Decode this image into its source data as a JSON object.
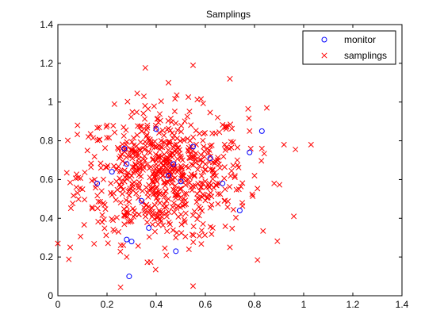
{
  "chart_data": {
    "type": "scatter",
    "title": "Samplings",
    "xlabel": "",
    "ylabel": "",
    "xlim": [
      0,
      1.4
    ],
    "ylim": [
      0,
      1.4
    ],
    "xticks": [
      "0",
      "0.2",
      "0.4",
      "0.6",
      "0.8",
      "1",
      "1.2",
      "1.4"
    ],
    "yticks": [
      "0",
      "0.2",
      "0.4",
      "0.6",
      "0.8",
      "1",
      "1.2",
      "1.4"
    ],
    "grid": false,
    "legend_position": "top-right",
    "series": [
      {
        "name": "monitor",
        "marker": "circle",
        "color": "#0000ff",
        "x": [
          0.16,
          0.22,
          0.27,
          0.28,
          0.29,
          0.3,
          0.34,
          0.37,
          0.4,
          0.48,
          0.5,
          0.55,
          0.62,
          0.67,
          0.74,
          0.78,
          0.83,
          0.28,
          0.47,
          0.45
        ],
        "y": [
          0.58,
          0.64,
          0.76,
          0.29,
          0.1,
          0.28,
          0.49,
          0.35,
          0.86,
          0.23,
          0.59,
          0.77,
          0.71,
          0.58,
          0.44,
          0.74,
          0.85,
          0.68,
          0.68,
          0.62
        ]
      },
      {
        "name": "samplings",
        "marker": "x",
        "color": "#ff0000",
        "x": [
          0.0,
          0.05,
          0.08,
          0.1,
          0.12,
          0.14,
          0.15,
          0.18,
          0.2,
          0.22,
          0.25,
          0.28,
          0.3,
          0.33,
          0.35,
          0.38,
          0.4,
          0.42,
          0.45,
          0.48,
          0.5,
          0.53,
          0.55,
          0.58,
          0.6,
          0.63,
          0.65,
          0.68,
          0.7,
          0.73,
          0.75,
          0.78,
          0.8,
          0.83,
          0.85,
          0.88,
          0.92,
          0.96,
          1.03,
          0.55,
          0.7,
          0.45
        ],
        "y": [
          0.27,
          0.25,
          0.88,
          0.55,
          0.75,
          0.45,
          0.6,
          0.38,
          0.88,
          0.52,
          0.71,
          0.2,
          0.62,
          0.42,
          1.03,
          0.55,
          0.68,
          0.8,
          0.5,
          0.3,
          0.72,
          0.6,
          1.19,
          0.45,
          0.68,
          0.35,
          0.92,
          0.55,
          1.12,
          0.7,
          0.48,
          0.85,
          0.62,
          0.76,
          0.97,
          0.58,
          0.78,
          0.41,
          0.78,
          0.05,
          0.25,
          1.1
        ]
      }
    ]
  }
}
